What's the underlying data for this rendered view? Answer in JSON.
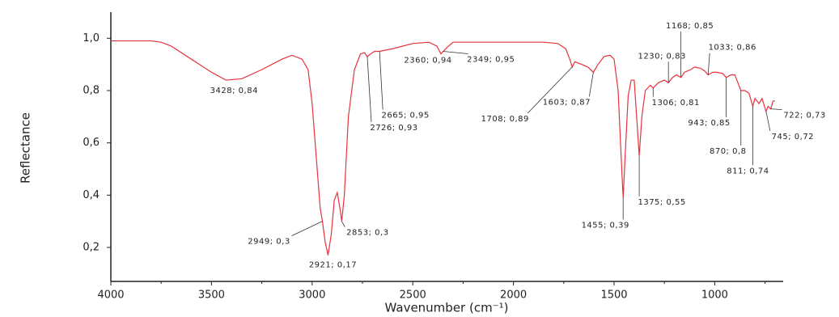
{
  "chart_data": {
    "type": "line",
    "x_label": "Wavenumber (cm⁻¹)",
    "y_label": "Reflectance",
    "xlim": [
      4000,
      660
    ],
    "ylim": [
      0.07,
      1.1
    ],
    "xticks": [
      4000,
      3500,
      3000,
      2500,
      2000,
      1500,
      1000
    ],
    "yticks": [
      {
        "value": 0.2,
        "label": "0,2"
      },
      {
        "value": 0.4,
        "label": "0,4"
      },
      {
        "value": 0.6,
        "label": "0,6"
      },
      {
        "value": 0.8,
        "label": "0,8"
      },
      {
        "value": 1.0,
        "label": "1,0"
      }
    ],
    "grid": false,
    "x": [
      4000,
      3800,
      3750,
      3700,
      3600,
      3500,
      3428,
      3350,
      3250,
      3150,
      3100,
      3050,
      3020,
      3000,
      2980,
      2960,
      2949,
      2935,
      2921,
      2905,
      2890,
      2875,
      2862,
      2853,
      2840,
      2820,
      2790,
      2760,
      2740,
      2726,
      2710,
      2690,
      2665,
      2600,
      2500,
      2420,
      2380,
      2360,
      2349,
      2330,
      2300,
      2200,
      2000,
      1850,
      1780,
      1740,
      1720,
      1708,
      1695,
      1660,
      1630,
      1603,
      1580,
      1550,
      1520,
      1500,
      1480,
      1465,
      1455,
      1445,
      1430,
      1415,
      1400,
      1388,
      1375,
      1362,
      1345,
      1320,
      1306,
      1280,
      1250,
      1230,
      1210,
      1190,
      1168,
      1150,
      1120,
      1100,
      1070,
      1050,
      1033,
      1010,
      990,
      960,
      943,
      920,
      900,
      885,
      870,
      850,
      830,
      811,
      800,
      780,
      765,
      745,
      735,
      722,
      710,
      700
    ],
    "series": [
      {
        "name": "Reflectance",
        "color": "#e8323c",
        "values": [
          0.99,
          0.99,
          0.985,
          0.97,
          0.92,
          0.87,
          0.84,
          0.845,
          0.88,
          0.92,
          0.935,
          0.92,
          0.88,
          0.75,
          0.55,
          0.35,
          0.3,
          0.22,
          0.17,
          0.25,
          0.38,
          0.41,
          0.35,
          0.3,
          0.4,
          0.7,
          0.88,
          0.94,
          0.945,
          0.93,
          0.94,
          0.95,
          0.95,
          0.96,
          0.98,
          0.985,
          0.97,
          0.94,
          0.95,
          0.965,
          0.985,
          0.985,
          0.985,
          0.985,
          0.98,
          0.96,
          0.92,
          0.89,
          0.91,
          0.9,
          0.89,
          0.87,
          0.9,
          0.93,
          0.935,
          0.92,
          0.8,
          0.55,
          0.39,
          0.55,
          0.78,
          0.84,
          0.84,
          0.7,
          0.55,
          0.7,
          0.8,
          0.82,
          0.81,
          0.83,
          0.84,
          0.83,
          0.85,
          0.86,
          0.85,
          0.87,
          0.88,
          0.89,
          0.885,
          0.875,
          0.86,
          0.87,
          0.87,
          0.865,
          0.85,
          0.86,
          0.86,
          0.83,
          0.8,
          0.8,
          0.79,
          0.74,
          0.77,
          0.75,
          0.77,
          0.72,
          0.74,
          0.73,
          0.76,
          0.76
        ]
      }
    ],
    "annotations": [
      {
        "x": 3428,
        "y": 0.84,
        "label": "3428; 0,84"
      },
      {
        "x": 2949,
        "y": 0.3,
        "label": "2949; 0,3"
      },
      {
        "x": 2921,
        "y": 0.17,
        "label": "2921; 0,17"
      },
      {
        "x": 2853,
        "y": 0.3,
        "label": "2853; 0,3"
      },
      {
        "x": 2726,
        "y": 0.93,
        "label": "2726; 0,93"
      },
      {
        "x": 2665,
        "y": 0.95,
        "label": "2665; 0,95"
      },
      {
        "x": 2360,
        "y": 0.94,
        "label": "2360; 0,94"
      },
      {
        "x": 2349,
        "y": 0.95,
        "label": "2349; 0,95"
      },
      {
        "x": 1708,
        "y": 0.89,
        "label": "1708; 0,89"
      },
      {
        "x": 1603,
        "y": 0.87,
        "label": "1603; 0,87"
      },
      {
        "x": 1455,
        "y": 0.39,
        "label": "1455; 0,39"
      },
      {
        "x": 1375,
        "y": 0.55,
        "label": "1375; 0,55"
      },
      {
        "x": 1306,
        "y": 0.81,
        "label": "1306; 0,81"
      },
      {
        "x": 1230,
        "y": 0.83,
        "label": "1230; 0,83"
      },
      {
        "x": 1168,
        "y": 0.85,
        "label": "1168; 0,85"
      },
      {
        "x": 1033,
        "y": 0.86,
        "label": "1033; 0,86"
      },
      {
        "x": 943,
        "y": 0.85,
        "label": "943; 0,85"
      },
      {
        "x": 870,
        "y": 0.8,
        "label": "870; 0,8"
      },
      {
        "x": 811,
        "y": 0.74,
        "label": "811; 0,74"
      },
      {
        "x": 745,
        "y": 0.72,
        "label": "745; 0,72"
      },
      {
        "x": 722,
        "y": 0.73,
        "label": "722; 0,73"
      }
    ]
  }
}
